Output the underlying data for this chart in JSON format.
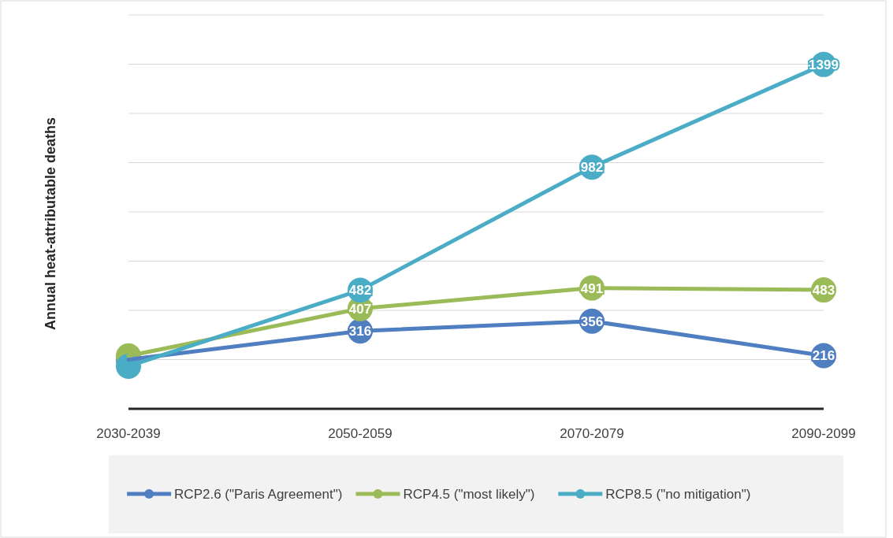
{
  "chart_data": {
    "type": "line",
    "ylabel": "Annual heat-attributable deaths",
    "categories": [
      "2030-2039",
      "2050-2059",
      "2070-2079",
      "2090-2099"
    ],
    "ylim": [
      0,
      1600
    ],
    "yticks": [
      {
        "value": 0,
        "label": null
      },
      {
        "value": 200,
        "label": null
      },
      {
        "value": 400,
        "label": null
      },
      {
        "value": 600,
        "label": null
      },
      {
        "value": 800,
        "label": null
      },
      {
        "value": 1000,
        "label": null
      },
      {
        "value": 1200,
        "label": null
      },
      {
        "value": 1400,
        "label": null
      },
      {
        "value": 1600,
        "label": null
      }
    ],
    "grid": "y",
    "legend": "bottom",
    "marker": "circle",
    "line_style": "solid",
    "series": [
      {
        "name": "RCP2.6 (\"Paris Agreement\")",
        "color": "#4f7fc0",
        "values": [
          200,
          316,
          356,
          216
        ],
        "value_labels": [
          null,
          "316",
          "356",
          "216"
        ]
      },
      {
        "name": "RCP4.5 (\"most likely\")",
        "color": "#9bbb59",
        "values": [
          215,
          407,
          491,
          483
        ],
        "value_labels": [
          null,
          "407",
          "491",
          "483"
        ]
      },
      {
        "name": "RCP8.5 (\"no mitigation\")",
        "color": "#4bacc6",
        "values": [
          173,
          482,
          982,
          1399
        ],
        "value_labels": [
          null,
          "482",
          "982",
          "1399"
        ]
      }
    ]
  }
}
